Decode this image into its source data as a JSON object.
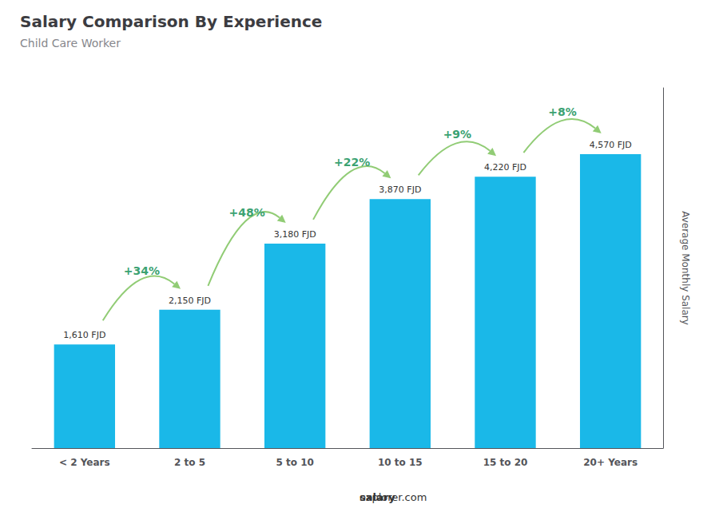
{
  "chart_data": {
    "type": "bar",
    "title": "Salary Comparison By Experience",
    "subtitle": "Child Care Worker",
    "ylabel": "Average Monthly Salary",
    "categories": [
      "< 2 Years",
      "2 to 5",
      "5 to 10",
      "10 to 15",
      "15 to 20",
      "20+ Years"
    ],
    "values": [
      1610,
      2150,
      3180,
      3870,
      4220,
      4570
    ],
    "value_labels": [
      "1,610 FJD",
      "2,150 FJD",
      "3,180 FJD",
      "3,870 FJD",
      "4,220 FJD",
      "4,570 FJD"
    ],
    "data_labels": true,
    "color": "#1ab8e8",
    "annotations": [
      "+34%",
      "+48%",
      "+22%",
      "+9%",
      "+8%"
    ],
    "footer": [
      "salary",
      "explorer.com"
    ],
    "ylim": [
      0,
      5600
    ],
    "grid": false,
    "tick_labels": "x"
  }
}
